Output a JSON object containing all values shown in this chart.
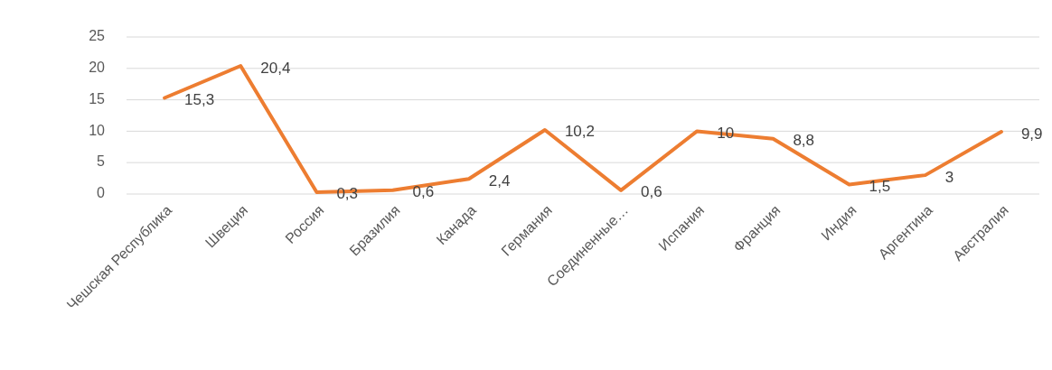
{
  "chart_data": {
    "type": "line",
    "categories": [
      "Чешская Республика",
      "Швеция",
      "Россия",
      "Бразилия",
      "Канада",
      "Германия",
      "Соединенные…",
      "Испания",
      "Франция",
      "Индия",
      "Аргентина",
      "Австралия"
    ],
    "values": [
      15.3,
      20.4,
      0.3,
      0.6,
      2.4,
      10.2,
      0.6,
      10,
      8.8,
      1.5,
      3,
      9.9
    ],
    "value_labels": [
      "15,3",
      "20,4",
      "0,3",
      "0,6",
      "2,4",
      "10,2",
      "0,6",
      "10",
      "8,8",
      "1,5",
      "3",
      "9,9"
    ],
    "color": "#ed7d31",
    "ylim": [
      0,
      25
    ],
    "yticks": [
      0,
      5,
      10,
      15,
      20,
      25
    ],
    "grid": "y",
    "marker": "none",
    "line_style": "solid"
  }
}
